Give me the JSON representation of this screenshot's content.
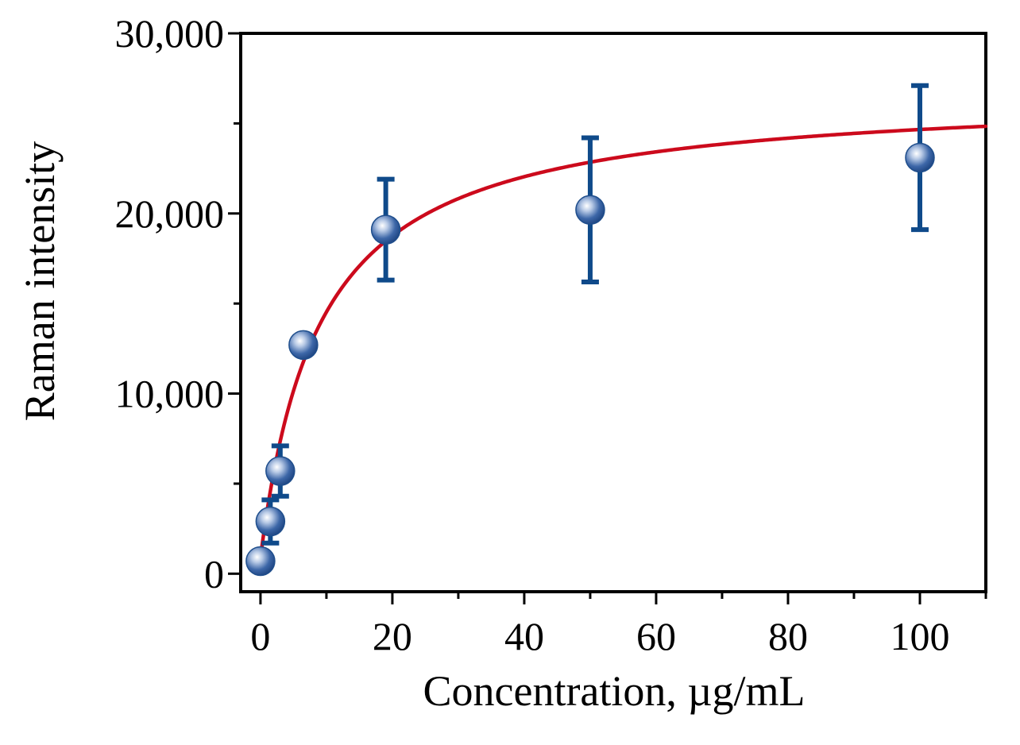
{
  "chart_data": {
    "type": "scatter",
    "title": "",
    "xlabel": "Concentration, µg/mL",
    "ylabel": "Raman intensity",
    "xlim": [
      -3,
      110
    ],
    "ylim": [
      -1000,
      30000
    ],
    "grid": false,
    "legend": "none",
    "xticks": [
      0,
      20,
      40,
      60,
      80,
      100
    ],
    "xtick_labels": [
      "0",
      "20",
      "40",
      "60",
      "80",
      "100"
    ],
    "yticks": [
      0,
      10000,
      20000,
      30000
    ],
    "ytick_labels": [
      "0",
      "10,000",
      "20,000",
      "30,000"
    ],
    "series": [
      {
        "name": "measured",
        "type": "scatter",
        "x": [
          0,
          1.5,
          3,
          6.5,
          19,
          50,
          100
        ],
        "y": [
          700,
          2900,
          5700,
          12700,
          19100,
          20200,
          23100
        ],
        "yerr": [
          300,
          1200,
          1400,
          300,
          2800,
          4000,
          4000
        ]
      },
      {
        "name": "fit",
        "type": "line",
        "model": "Vmax*(x-x0)/(K+(x-x0))",
        "params": {
          "Vmax": 26800,
          "K": 8.7,
          "x0": -0.3
        },
        "x_range": [
          -0.3,
          110
        ]
      }
    ],
    "colors": {
      "points": "#1f4e8c",
      "error_bars": "#0f4a8a",
      "fit": "#cc0a1c",
      "axes": "#000000"
    }
  }
}
